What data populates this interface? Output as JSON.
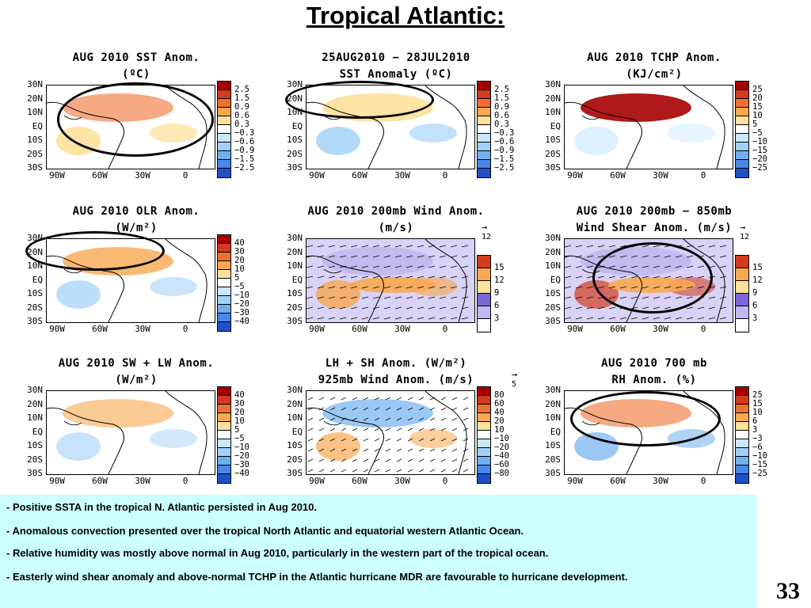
{
  "title": "Tropical Atlantic:",
  "axes": {
    "y_labels": [
      "30N",
      "20N",
      "10N",
      "EQ",
      "10S",
      "20S",
      "30S"
    ],
    "x_labels": [
      "90W",
      "60W",
      "30W",
      "0"
    ]
  },
  "colorbars": {
    "sst": {
      "colors": [
        "#a50000",
        "#d43a1f",
        "#f07030",
        "#f8a850",
        "#fde09a",
        "#ffffff",
        "#c8e8ff",
        "#a0d0f8",
        "#70b0f0",
        "#4888e8",
        "#2050c8"
      ],
      "labels": [
        "2.5",
        "1.5",
        "0.9",
        "0.6",
        "0.3",
        "−0.3",
        "−0.6",
        "−0.9",
        "−1.5",
        "−2.5"
      ]
    },
    "tchp": {
      "colors": [
        "#a50000",
        "#d43a1f",
        "#f07030",
        "#f8a850",
        "#fde09a",
        "#ffffff",
        "#c8e8ff",
        "#a0d0f8",
        "#70b0f0",
        "#4888e8",
        "#2050c8"
      ],
      "labels": [
        "25",
        "20",
        "15",
        "10",
        "5",
        "−5",
        "−10",
        "−15",
        "−20",
        "−25"
      ]
    },
    "olr": {
      "colors": [
        "#a50000",
        "#d43a1f",
        "#f07030",
        "#f8a850",
        "#fde09a",
        "#ffffff",
        "#c8e8ff",
        "#a0d0f8",
        "#70b0f0",
        "#4888e8",
        "#2050c8"
      ],
      "labels": [
        "40",
        "30",
        "20",
        "10",
        "5",
        "−5",
        "−10",
        "−20",
        "−30",
        "−40"
      ]
    },
    "wind": {
      "colors": [
        "#d43a1f",
        "#f8a850",
        "#fde09a",
        "#7b68d8",
        "#c0b8f0",
        "#ffffff"
      ],
      "labels": [
        "15",
        "12",
        "9",
        "6",
        "3"
      ]
    },
    "lhsh": {
      "colors": [
        "#a50000",
        "#d43a1f",
        "#f07030",
        "#f8a850",
        "#fde09a",
        "#ffffff",
        "#c8e8ff",
        "#a0d0f8",
        "#70b0f0",
        "#4888e8",
        "#2050c8"
      ],
      "labels": [
        "80",
        "60",
        "40",
        "20",
        "10",
        "−10",
        "−20",
        "−40",
        "−60",
        "−80"
      ]
    },
    "rh": {
      "colors": [
        "#a50000",
        "#d43a1f",
        "#f07030",
        "#f8a850",
        "#fde09a",
        "#ffffff",
        "#c8e8ff",
        "#a0d0f8",
        "#70b0f0",
        "#4888e8",
        "#2050c8"
      ],
      "labels": [
        "25",
        "15",
        "10",
        "6",
        "3",
        "−3",
        "−6",
        "−10",
        "−15",
        "−25"
      ]
    }
  },
  "panels": [
    {
      "id": "sst",
      "title1": "AUG 2010 SST Anom.",
      "title2": "(ºC)",
      "cbar": "sst"
    },
    {
      "id": "sst_diff",
      "title1": "25AUG2010 − 28JUL2010",
      "title2": "SST Anomaly (ºC)",
      "cbar": "sst"
    },
    {
      "id": "tchp",
      "title1": "AUG 2010 TCHP Anom.",
      "title2": "(KJ/cm²)",
      "cbar": "tchp"
    },
    {
      "id": "olr",
      "title1": "AUG 2010 OLR Anom.",
      "title2": "(W/m²)",
      "cbar": "olr"
    },
    {
      "id": "wind200",
      "title1": "AUG 2010 200mb Wind Anom.",
      "title2": "(m/s)",
      "cbar": "wind",
      "ref": "12"
    },
    {
      "id": "shear",
      "title1": "AUG 2010 200mb − 850mb",
      "title2": "Wind Shear Anom. (m/s)",
      "cbar": "wind",
      "ref": "12"
    },
    {
      "id": "swlw",
      "title1": "AUG 2010 SW + LW Anom.",
      "title2": "(W/m²)",
      "cbar": "olr"
    },
    {
      "id": "lhsh",
      "title1": "LH + SH Anom. (W/m²)",
      "title2": "925mb Wind Anom. (m/s)",
      "cbar": "lhsh",
      "ref": "5"
    },
    {
      "id": "rh",
      "title1": "AUG 2010 700 mb",
      "title2": "RH Anom. (%)",
      "cbar": "rh"
    }
  ],
  "bullets": [
    "- Positive SSTA in  the  tropical N. Atlantic persisted in Aug 2010.",
    "- Anomalous convection presented over the tropical North Atlantic and equatorial western Atlantic Ocean.",
    "- Relative humidity was mostly above normal in Aug 2010, particularly in the western part of the tropical ocean.",
    "- Easterly wind shear anomaly and above-normal TCHP in the Atlantic hurricane MDR are favourable to hurricane development."
  ],
  "page_number": "33"
}
